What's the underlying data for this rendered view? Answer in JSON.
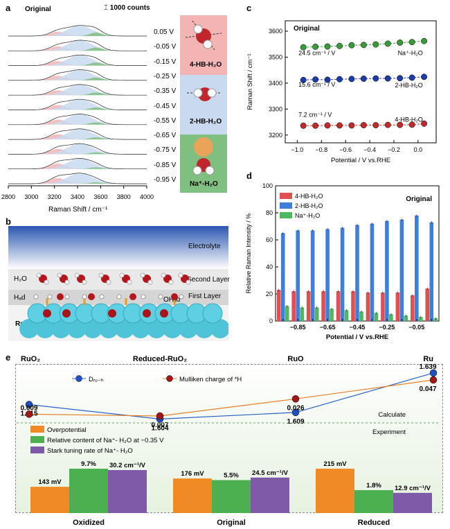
{
  "panels": {
    "a": "a",
    "b": "b",
    "c": "c",
    "d": "d",
    "e": "e"
  },
  "panel_a": {
    "original_label": "Original",
    "scale_label": "1000 counts",
    "potentials": [
      "0.05 V",
      "-0.05 V",
      "-0.15 V",
      "-0.25 V",
      "-0.35 V",
      "-0.45 V",
      "-0.55 V",
      "-0.65 V",
      "-0.75 V",
      "-0.85 V",
      "-0.95 V"
    ],
    "species": [
      "4-HB-H₂O",
      "2-HB-H₂O",
      "Na⁺-H₂O"
    ],
    "species_colors": [
      "#f3b4b4",
      "#c9d9f0",
      "#7fbf7f"
    ],
    "xlabel": "Raman Shift / cm⁻¹",
    "xticks": [
      "2800",
      "3000",
      "3200",
      "3400",
      "3600",
      "3800",
      "4000"
    ]
  },
  "panel_b": {
    "electrolyte": "Electrolyte",
    "h2o": "H₂O",
    "second_layer": "Second Layer",
    "first_layer": "First Layer",
    "h_ad": "Hₐd",
    "oh_ad": "OHₐd",
    "ru": "Ru"
  },
  "chart_data": [
    {
      "type": "scatter",
      "title": "Original",
      "xlabel": "Potential / V vs.RHE",
      "ylabel": "Raman Shift / cm⁻¹",
      "xlim": [
        -1.1,
        0.15
      ],
      "ylim": [
        3170,
        3640
      ],
      "xticks": [
        -1.0,
        -0.8,
        -0.6,
        -0.4,
        -0.2,
        0.0
      ],
      "yticks": [
        3200,
        3300,
        3400,
        3500,
        3600
      ],
      "x": [
        -0.95,
        -0.85,
        -0.75,
        -0.65,
        -0.55,
        -0.45,
        -0.35,
        -0.25,
        -0.15,
        -0.05,
        0.05
      ],
      "series": [
        {
          "name": "Na⁺-H₂O",
          "slope": "24.5 cm⁻¹ / V",
          "color": "#3a9a3a",
          "values": [
            3538,
            3540,
            3541,
            3543,
            3546,
            3547,
            3549,
            3552,
            3556,
            3558,
            3562
          ]
        },
        {
          "name": "2-HB-H₂O",
          "slope": "15.6 cm⁻¹ / V",
          "color": "#1c3aa8",
          "values": [
            3412,
            3414,
            3413,
            3415,
            3416,
            3417,
            3418,
            3418,
            3419,
            3421,
            3424
          ]
        },
        {
          "name": "4-HB-H₂O",
          "slope": "7.2 cm⁻¹ / V",
          "color": "#c02a2a",
          "values": [
            3236,
            3236,
            3237,
            3237,
            3237,
            3238,
            3238,
            3239,
            3239,
            3240,
            3244
          ]
        }
      ]
    },
    {
      "type": "bar",
      "title": "Original",
      "xlabel": "Potential / V vs.RHE",
      "ylabel": "Relative Raman Intensity / %",
      "ylim": [
        0,
        100
      ],
      "yticks": [
        0,
        20,
        40,
        60,
        80,
        100
      ],
      "categories": [
        "-0.95",
        "-0.85",
        "-0.75",
        "-0.65",
        "-0.55",
        "-0.45",
        "-0.35",
        "-0.25",
        "-0.15",
        "-0.05",
        "0.05"
      ],
      "xtick_labels": [
        "−0.85",
        "−0.65",
        "−0.45",
        "−0.25",
        "−0.05"
      ],
      "series": [
        {
          "name": "4-HB-H₂O",
          "color": "#e05050",
          "values": [
            23,
            22,
            22,
            22,
            22,
            22,
            21,
            21,
            21,
            19,
            24
          ]
        },
        {
          "name": "2-HB-H₂O",
          "color": "#3f7fd9",
          "values": [
            65,
            67,
            67,
            68,
            69,
            71,
            72,
            74,
            75,
            78,
            73
          ]
        },
        {
          "name": "Na⁺-H₂O",
          "color": "#4fb85f",
          "values": [
            11,
            10,
            10,
            9,
            8,
            7,
            6,
            5,
            4,
            3,
            2
          ]
        }
      ]
    },
    {
      "type": "line",
      "categories": [
        "RuO₂",
        "Reduced-RuO₂",
        "RuO",
        "Ru"
      ],
      "series": [
        {
          "name": "Dᵣᵤ₋ₕ",
          "color": "#2a62c8",
          "values": [
            1.615,
            1.604,
            1.609,
            1.639
          ],
          "labels": [
            "1.615",
            "1.604",
            "1.609",
            "1.639"
          ]
        },
        {
          "name": "Mulliken charge of *H",
          "color": "#e67e22",
          "values": [
            0.009,
            0.007,
            0.026,
            0.047
          ],
          "labels": [
            "0.009",
            "0.007",
            "0.026",
            "0.047"
          ]
        }
      ],
      "calculate_label": "Calculate",
      "experiment_label": "Experiment"
    },
    {
      "type": "bar",
      "legend": [
        "Overpotential",
        "Relative content of Na⁺- H₂O at −0.35 V",
        "Stark tuning rate of Na⁺- H₂O"
      ],
      "colors": [
        "#f08a24",
        "#4caf50",
        "#7e5aa8"
      ],
      "categories": [
        "Oxidized",
        "Original",
        "Reduced"
      ],
      "overpotential_mv": [
        143,
        176,
        215
      ],
      "relative_content_pct": [
        9.7,
        5.5,
        1.8
      ],
      "stark_rate": [
        30.2,
        24.5,
        12.9
      ],
      "value_labels": [
        [
          "143 mV",
          "9.7%",
          "30.2 cm⁻¹/V"
        ],
        [
          "176 mV",
          "5.5%",
          "24.5 cm⁻¹/V"
        ],
        [
          "215 mV",
          "1.8%",
          "12.9 cm⁻¹/V"
        ]
      ]
    }
  ]
}
